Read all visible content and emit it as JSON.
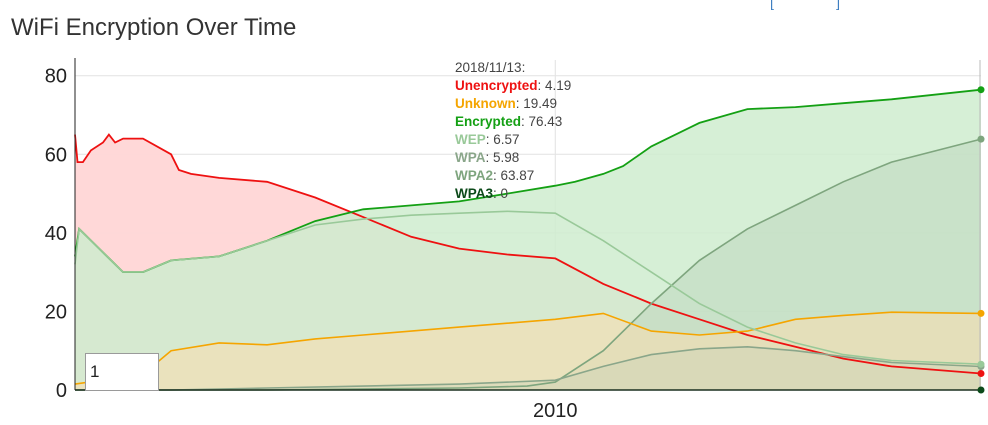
{
  "top_link": "[                ]",
  "roller_value": "1",
  "colors": {
    "unencrypted": "#ee1111",
    "unknown": "#f5a500",
    "encrypted": "#14a014",
    "wep": "#99c999",
    "wpa": "#8aa68a",
    "wpa2": "#7ea57e",
    "wpa3": "#0c4a1a"
  },
  "chart_data": {
    "type": "area",
    "title": "WiFi Encryption Over Time",
    "xlabel": "",
    "ylabel": "",
    "xlim": [
      "2000/01/01",
      "2018/11/13"
    ],
    "ylim": [
      0,
      84
    ],
    "x_ticks": [
      {
        "date": "2010/01/01",
        "label": "2010"
      }
    ],
    "y_ticks": [
      0,
      20,
      40,
      60,
      80
    ],
    "grid": true,
    "legend": {
      "date": "2018/11/13",
      "date_label": "2018/11/13:",
      "position": "top-center",
      "entries": [
        {
          "key": "unencrypted",
          "name": "Unencrypted",
          "value": "4.19"
        },
        {
          "key": "unknown",
          "name": "Unknown",
          "value": "19.49"
        },
        {
          "key": "encrypted",
          "name": "Encrypted",
          "value": "76.43"
        },
        {
          "key": "wep",
          "name": "WEP",
          "value": "6.57"
        },
        {
          "key": "wpa",
          "name": "WPA",
          "value": "5.98"
        },
        {
          "key": "wpa2",
          "name": "WPA2",
          "value": "63.87"
        },
        {
          "key": "wpa3",
          "name": "WPA3",
          "value": "0"
        }
      ]
    },
    "series": [
      {
        "key": "unencrypted",
        "name": "Unencrypted",
        "color": "#ee1111",
        "fill": "#ffd6d6",
        "fill_opacity": 0.95,
        "points": [
          [
            "2000/01/01",
            65
          ],
          [
            "2000/01/20",
            58
          ],
          [
            "2000/03/01",
            58
          ],
          [
            "2000/05/01",
            61
          ],
          [
            "2000/08/01",
            63
          ],
          [
            "2000/09/15",
            65
          ],
          [
            "2000/11/01",
            63
          ],
          [
            "2001/01/01",
            64
          ],
          [
            "2001/06/01",
            64
          ],
          [
            "2002/01/01",
            60
          ],
          [
            "2002/03/01",
            56
          ],
          [
            "2002/06/01",
            55
          ],
          [
            "2003/01/01",
            54
          ],
          [
            "2004/01/01",
            53
          ],
          [
            "2005/01/01",
            49
          ],
          [
            "2006/01/01",
            44
          ],
          [
            "2007/01/01",
            39
          ],
          [
            "2008/01/01",
            36
          ],
          [
            "2009/01/01",
            34.5
          ],
          [
            "2010/01/01",
            33.5
          ],
          [
            "2011/01/01",
            27
          ],
          [
            "2012/01/01",
            22
          ],
          [
            "2013/01/01",
            18
          ],
          [
            "2014/01/01",
            14
          ],
          [
            "2015/01/01",
            11
          ],
          [
            "2016/01/01",
            8
          ],
          [
            "2017/01/01",
            6
          ],
          [
            "2018/11/13",
            4.19
          ]
        ]
      },
      {
        "key": "unknown",
        "name": "Unknown",
        "color": "#f5a500",
        "fill": "#f7ddb0",
        "fill_opacity": 0.6,
        "points": [
          [
            "2000/01/01",
            1.5
          ],
          [
            "2001/06/01",
            4
          ],
          [
            "2002/01/01",
            10
          ],
          [
            "2003/01/01",
            12
          ],
          [
            "2004/01/01",
            11.5
          ],
          [
            "2005/01/01",
            13
          ],
          [
            "2006/01/01",
            14
          ],
          [
            "2007/01/01",
            15
          ],
          [
            "2008/01/01",
            16
          ],
          [
            "2009/01/01",
            17
          ],
          [
            "2010/01/01",
            18
          ],
          [
            "2011/01/01",
            19.5
          ],
          [
            "2012/01/01",
            15
          ],
          [
            "2013/01/01",
            14
          ],
          [
            "2014/01/01",
            15
          ],
          [
            "2015/01/01",
            18
          ],
          [
            "2016/01/01",
            19
          ],
          [
            "2017/01/01",
            19.8
          ],
          [
            "2018/11/13",
            19.49
          ]
        ]
      },
      {
        "key": "encrypted",
        "name": "Encrypted",
        "color": "#14a014",
        "fill": "#cfeccf",
        "fill_opacity": 0.85,
        "points": [
          [
            "2000/01/01",
            34
          ],
          [
            "2000/02/01",
            41
          ],
          [
            "2001/01/01",
            30
          ],
          [
            "2001/06/01",
            30
          ],
          [
            "2002/01/01",
            33
          ],
          [
            "2003/01/01",
            34
          ],
          [
            "2004/01/01",
            38
          ],
          [
            "2005/01/01",
            43
          ],
          [
            "2006/01/01",
            46
          ],
          [
            "2007/01/01",
            47
          ],
          [
            "2008/01/01",
            48
          ],
          [
            "2009/01/01",
            50
          ],
          [
            "2010/01/01",
            52
          ],
          [
            "2010/06/01",
            53
          ],
          [
            "2011/01/01",
            55
          ],
          [
            "2011/06/01",
            57
          ],
          [
            "2012/01/01",
            62
          ],
          [
            "2013/01/01",
            68
          ],
          [
            "2014/01/01",
            71.5
          ],
          [
            "2015/01/01",
            72
          ],
          [
            "2016/01/01",
            73
          ],
          [
            "2017/01/01",
            74
          ],
          [
            "2018/11/13",
            76.43
          ]
        ]
      },
      {
        "key": "wep",
        "name": "WEP",
        "color": "#99c999",
        "fill": "#d8ead8",
        "fill_opacity": 0.0,
        "points": [
          [
            "2000/01/01",
            32
          ],
          [
            "2000/02/01",
            41
          ],
          [
            "2001/01/01",
            30
          ],
          [
            "2001/06/01",
            30
          ],
          [
            "2002/01/01",
            33
          ],
          [
            "2003/01/01",
            34
          ],
          [
            "2004/01/01",
            38
          ],
          [
            "2005/01/01",
            42
          ],
          [
            "2006/01/01",
            43.5
          ],
          [
            "2007/01/01",
            44.5
          ],
          [
            "2008/01/01",
            45
          ],
          [
            "2009/01/01",
            45.5
          ],
          [
            "2010/01/01",
            45
          ],
          [
            "2011/01/01",
            38
          ],
          [
            "2012/01/01",
            30
          ],
          [
            "2013/01/01",
            22
          ],
          [
            "2014/01/01",
            16
          ],
          [
            "2015/01/01",
            12
          ],
          [
            "2016/01/01",
            9
          ],
          [
            "2017/01/01",
            7.5
          ],
          [
            "2018/11/13",
            6.57
          ]
        ]
      },
      {
        "key": "wpa",
        "name": "WPA",
        "color": "#8aa68a",
        "fill": "#b9cdb9",
        "fill_opacity": 0.25,
        "points": [
          [
            "2000/01/01",
            0
          ],
          [
            "2002/01/01",
            0
          ],
          [
            "2004/01/01",
            0.5
          ],
          [
            "2006/01/01",
            1
          ],
          [
            "2008/01/01",
            1.5
          ],
          [
            "2010/01/01",
            2.5
          ],
          [
            "2011/01/01",
            6
          ],
          [
            "2012/01/01",
            9
          ],
          [
            "2013/01/01",
            10.5
          ],
          [
            "2014/01/01",
            11
          ],
          [
            "2015/01/01",
            10
          ],
          [
            "2016/01/01",
            8.5
          ],
          [
            "2017/01/01",
            7
          ],
          [
            "2018/11/13",
            5.98
          ]
        ]
      },
      {
        "key": "wpa2",
        "name": "WPA2",
        "color": "#7ea57e",
        "fill": "#bcd6bc",
        "fill_opacity": 0.5,
        "points": [
          [
            "2000/01/01",
            0
          ],
          [
            "2004/01/01",
            0
          ],
          [
            "2008/01/01",
            0.5
          ],
          [
            "2009/06/01",
            1
          ],
          [
            "2010/01/01",
            2
          ],
          [
            "2011/01/01",
            10
          ],
          [
            "2012/01/01",
            22
          ],
          [
            "2013/01/01",
            33
          ],
          [
            "2014/01/01",
            41
          ],
          [
            "2015/01/01",
            47
          ],
          [
            "2016/01/01",
            53
          ],
          [
            "2017/01/01",
            58
          ],
          [
            "2018/11/13",
            63.87
          ]
        ]
      },
      {
        "key": "wpa3",
        "name": "WPA3",
        "color": "#0c4a1a",
        "fill": "#0c4a1a",
        "fill_opacity": 0.0,
        "points": [
          [
            "2000/01/01",
            0
          ],
          [
            "2018/11/13",
            0
          ]
        ]
      }
    ]
  }
}
